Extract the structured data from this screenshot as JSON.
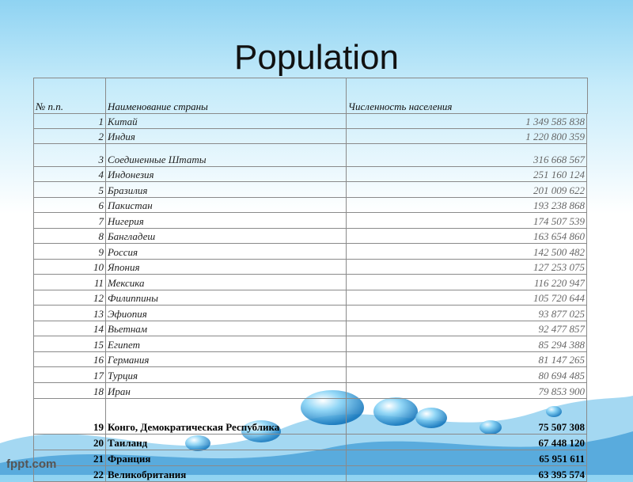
{
  "title": "Population",
  "watermark": "fppt.com",
  "table": {
    "header": [
      "№ п.п.",
      "Наименование страны",
      "Численность населения"
    ],
    "rows": [
      [
        1,
        "Китай",
        "1 349 585 838"
      ],
      [
        2,
        "Индия",
        "1 220 800 359"
      ],
      [
        3,
        "Соединенные Штаты",
        "316 668 567"
      ],
      [
        4,
        "Индонезия",
        "251 160 124"
      ],
      [
        5,
        "Бразилия",
        "201 009 622"
      ],
      [
        6,
        "Пакистан",
        "193 238 868"
      ],
      [
        7,
        "Нигерия",
        "174 507 539"
      ],
      [
        8,
        "Бангладеш",
        "163 654 860"
      ],
      [
        9,
        "Россия",
        "142 500 482"
      ],
      [
        10,
        "Япония",
        "127 253 075"
      ],
      [
        11,
        "Мексика",
        "116 220 947"
      ],
      [
        12,
        "Филиппины",
        "105 720 644"
      ],
      [
        13,
        "Эфиопия",
        "93 877 025"
      ],
      [
        14,
        "Вьетнам",
        "92 477 857"
      ],
      [
        15,
        "Египет",
        "85 294 388"
      ],
      [
        16,
        "Германия",
        "81 147 265"
      ],
      [
        17,
        "Турция",
        "80 694 485"
      ],
      [
        18,
        "Иран",
        "79 853 900"
      ],
      [
        19,
        "Конго, Демократическая Республика",
        "75 507 308"
      ],
      [
        20,
        "Таиланд",
        "67 448 120"
      ],
      [
        21,
        "Франция",
        "65 951 611"
      ],
      [
        22,
        "Великобритания",
        "63 395 574"
      ]
    ]
  }
}
